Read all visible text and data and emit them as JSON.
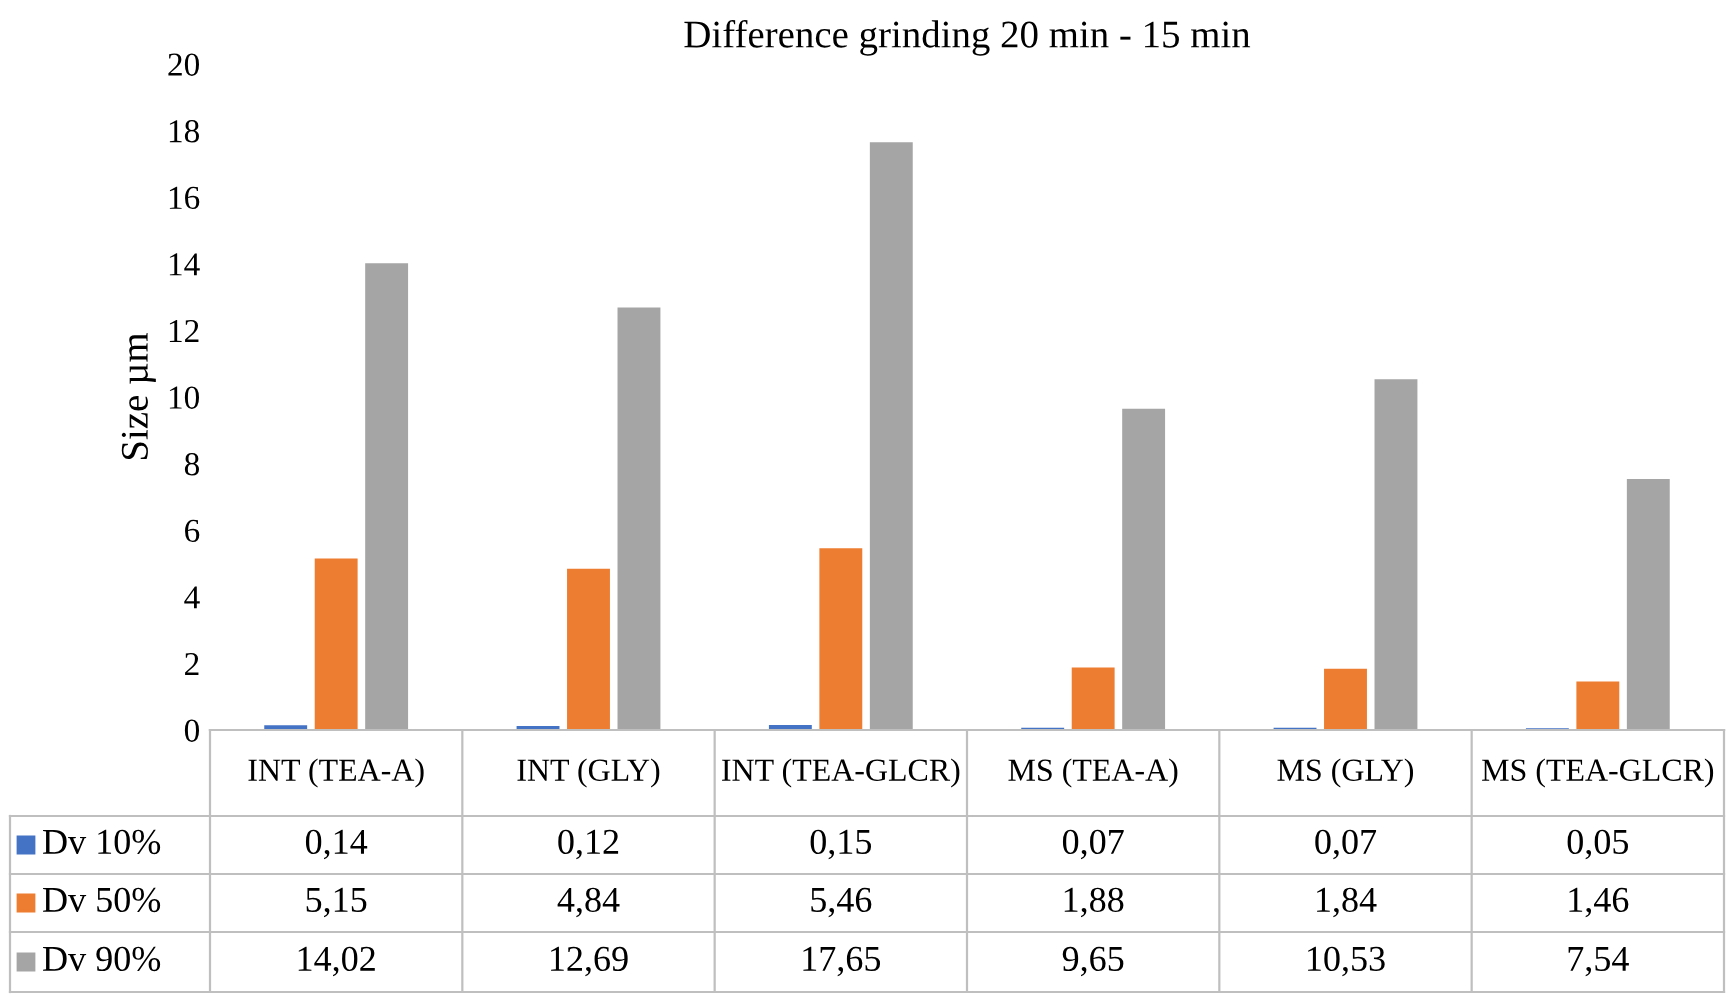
{
  "chart_data": {
    "type": "bar",
    "title": "Difference grinding 20 min - 15 min",
    "ylabel": "Size µm",
    "categories": [
      "INT (TEA-A)",
      "INT (GLY)",
      "INT (TEA-GLCR)",
      "MS (TEA-A)",
      "MS (GLY)",
      "MS (TEA-GLCR)"
    ],
    "ylim": [
      0,
      20
    ],
    "yticks": [
      0,
      2,
      4,
      6,
      8,
      10,
      12,
      14,
      16,
      18,
      20
    ],
    "grid": false,
    "legend": "bottom",
    "series": [
      {
        "name": "Dv 10%",
        "color": "#4472c4",
        "values": [
          0.14,
          0.12,
          0.15,
          0.07,
          0.07,
          0.05
        ],
        "value_labels": [
          "0,14",
          "0,12",
          "0,15",
          "0,07",
          "0,07",
          "0,05"
        ]
      },
      {
        "name": "Dv 50%",
        "color": "#ed7d31",
        "values": [
          5.15,
          4.84,
          5.46,
          1.88,
          1.84,
          1.46
        ],
        "value_labels": [
          "5,15",
          "4,84",
          "5,46",
          "1,88",
          "1,84",
          "1,46"
        ]
      },
      {
        "name": "Dv 90%",
        "color": "#a5a5a5",
        "values": [
          14.02,
          12.69,
          17.65,
          9.65,
          10.53,
          7.54
        ],
        "value_labels": [
          "14,02",
          "12,69",
          "17,65",
          "9,65",
          "10,53",
          "7,54"
        ]
      }
    ]
  }
}
